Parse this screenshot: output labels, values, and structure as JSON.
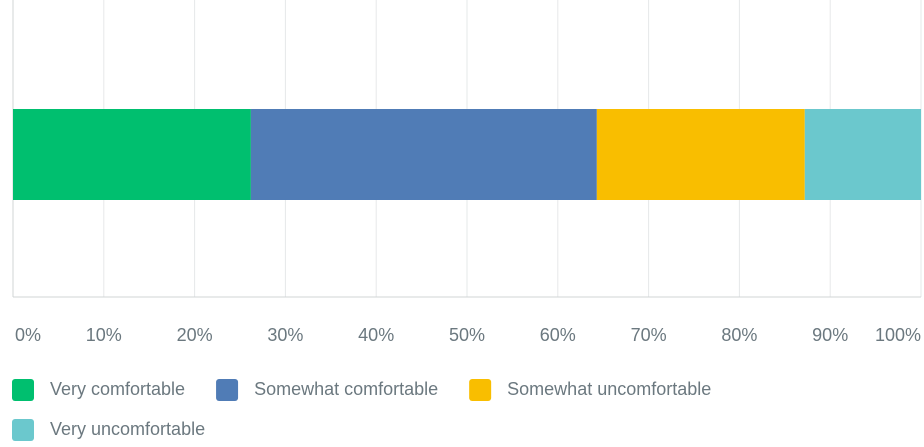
{
  "chart_data": {
    "type": "stacked-barh",
    "categories": [
      null
    ],
    "series": [
      {
        "name": "Very comfortable",
        "color": "#00bf6f",
        "values": [
          26.2
        ]
      },
      {
        "name": "Somewhat comfortable",
        "color": "#507cb6",
        "values": [
          38.1
        ]
      },
      {
        "name": "Somewhat uncomfortable",
        "color": "#f9be00",
        "values": [
          22.9
        ]
      },
      {
        "name": "Very uncomfortable",
        "color": "#6bc8cd",
        "values": [
          12.8
        ]
      }
    ],
    "xlim": [
      0,
      100
    ],
    "xticks": [
      {
        "value": 0,
        "label": "0%"
      },
      {
        "value": 10,
        "label": "10%"
      },
      {
        "value": 20,
        "label": "20%"
      },
      {
        "value": 30,
        "label": "30%"
      },
      {
        "value": 40,
        "label": "40%"
      },
      {
        "value": 50,
        "label": "50%"
      },
      {
        "value": 60,
        "label": "60%"
      },
      {
        "value": 70,
        "label": "70%"
      },
      {
        "value": 80,
        "label": "80%"
      },
      {
        "value": 90,
        "label": "90%"
      },
      {
        "value": 100,
        "label": "100%"
      }
    ],
    "grid": true,
    "legend": "bottom"
  }
}
